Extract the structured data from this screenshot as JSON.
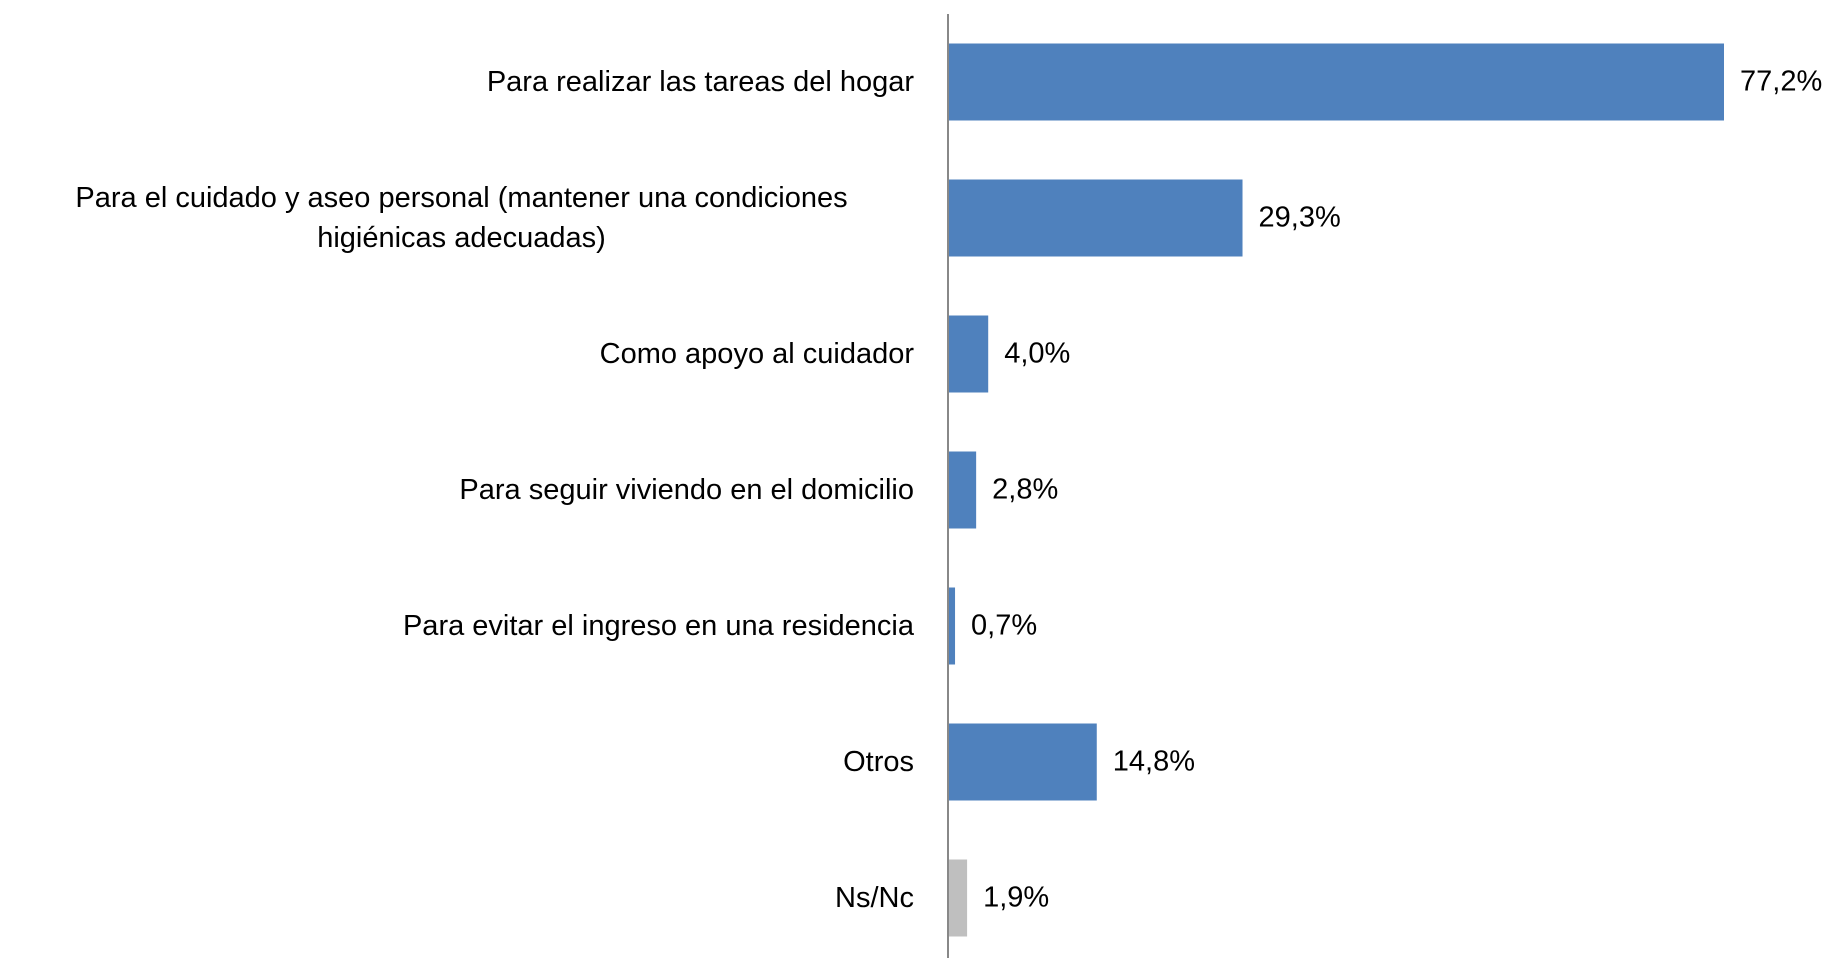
{
  "chart_data": {
    "type": "bar",
    "orientation": "horizontal",
    "categories": [
      "Para realizar las tareas del hogar",
      "Para el cuidado y aseo personal (mantener una condiciones higiénicas adecuadas)",
      "Como apoyo al cuidador",
      "Para seguir viviendo en el domicilio",
      "Para evitar el ingreso en una residencia",
      "Otros",
      "Ns/Nc"
    ],
    "values": [
      77.2,
      29.3,
      4.0,
      2.8,
      0.7,
      14.8,
      1.9
    ],
    "value_labels": [
      "77,2%",
      "29,3%",
      "4,0%",
      "2,8%",
      "0,7%",
      "14,8%",
      "1,9%"
    ],
    "colors": [
      "#4f81bd",
      "#4f81bd",
      "#4f81bd",
      "#4f81bd",
      "#4f81bd",
      "#4f81bd",
      "#bfbfbf"
    ]
  }
}
